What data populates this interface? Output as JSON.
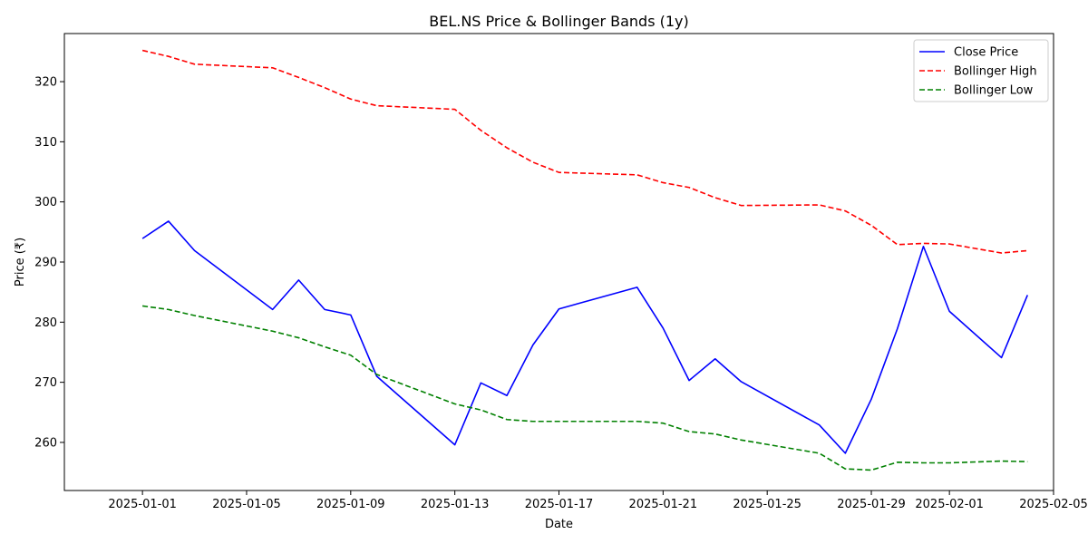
{
  "chart_data": {
    "type": "line",
    "title": "BEL.NS Price & Bollinger Bands (1y)",
    "xlabel": "Date",
    "ylabel": "Price (₹)",
    "xlim": [
      "2024-12-29",
      "2025-02-05"
    ],
    "ylim": [
      252,
      328
    ],
    "x_ticks": [
      "2025-01-01",
      "2025-01-05",
      "2025-01-09",
      "2025-01-13",
      "2025-01-17",
      "2025-01-21",
      "2025-01-25",
      "2025-01-29",
      "2025-02-01",
      "2025-02-05"
    ],
    "y_ticks": [
      260,
      270,
      280,
      290,
      300,
      310,
      320
    ],
    "grid": false,
    "legend_position": "top-right",
    "x": [
      "2025-01-01",
      "2025-01-02",
      "2025-01-03",
      "2025-01-06",
      "2025-01-07",
      "2025-01-08",
      "2025-01-09",
      "2025-01-10",
      "2025-01-13",
      "2025-01-14",
      "2025-01-15",
      "2025-01-16",
      "2025-01-17",
      "2025-01-20",
      "2025-01-21",
      "2025-01-22",
      "2025-01-23",
      "2025-01-24",
      "2025-01-27",
      "2025-01-28",
      "2025-01-29",
      "2025-01-30",
      "2025-01-31",
      "2025-02-01",
      "2025-02-03",
      "2025-02-04"
    ],
    "series": [
      {
        "name": "Close Price",
        "color": "#0000ff",
        "style": "solid",
        "values": [
          293.9,
          296.8,
          291.9,
          282.1,
          287.0,
          282.1,
          281.2,
          271.0,
          259.6,
          269.9,
          267.8,
          276.2,
          282.2,
          285.8,
          279.0,
          270.3,
          273.9,
          270.1,
          262.9,
          258.2,
          267.2,
          278.9,
          292.6,
          281.8,
          274.1,
          284.5
        ]
      },
      {
        "name": "Bollinger High",
        "color": "#ff0000",
        "style": "dashed",
        "values": [
          325.2,
          324.2,
          322.9,
          322.3,
          320.7,
          319.0,
          317.1,
          316.0,
          315.4,
          311.9,
          309.0,
          306.6,
          304.9,
          304.5,
          303.2,
          302.4,
          300.7,
          299.4,
          299.5,
          298.5,
          296.1,
          292.9,
          293.1,
          293.0,
          291.5,
          291.9
        ]
      },
      {
        "name": "Bollinger Low",
        "color": "#008000",
        "style": "dashed",
        "values": [
          282.7,
          282.1,
          281.1,
          278.5,
          277.4,
          275.9,
          274.5,
          271.3,
          266.4,
          265.4,
          263.8,
          263.5,
          263.5,
          263.5,
          263.2,
          261.8,
          261.4,
          260.4,
          258.2,
          255.6,
          255.4,
          256.7,
          256.6,
          256.6,
          256.9,
          256.8
        ]
      }
    ]
  }
}
